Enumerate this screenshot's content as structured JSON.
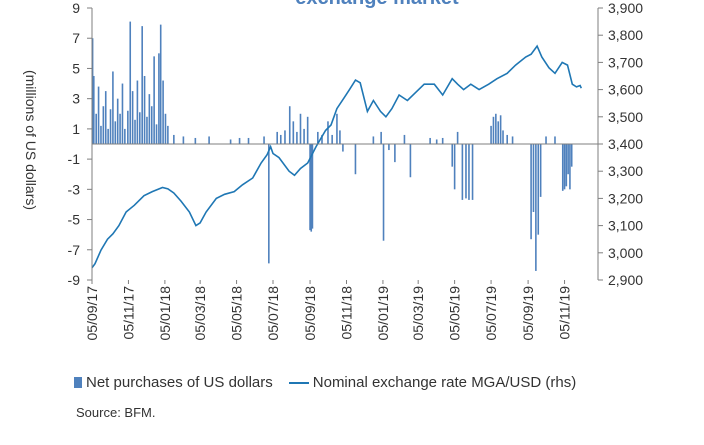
{
  "chart_data": {
    "type": "bar+line",
    "title": "exchange market",
    "ylabel_left": "(millions of US dollars)",
    "y_left_range": [
      -9,
      9
    ],
    "y_left_ticks": [
      "9",
      "7",
      "5",
      "3",
      "1",
      "-1",
      "-3",
      "-5",
      "-7",
      "-9"
    ],
    "y_right_range": [
      2900,
      3900
    ],
    "y_right_ticks": [
      "3,900",
      "3,800",
      "3,700",
      "3,600",
      "3,500",
      "3,400",
      "3,300",
      "3,200",
      "3,100",
      "3,000",
      "2,900"
    ],
    "x_range": [
      "2017-09-05",
      "2019-12-31"
    ],
    "x_ticks": [
      {
        "date": "2017-09-05",
        "label": "05/09/17"
      },
      {
        "date": "2017-11-05",
        "label": "05/11/17"
      },
      {
        "date": "2018-01-05",
        "label": "05/01/18"
      },
      {
        "date": "2018-03-05",
        "label": "05/03/18"
      },
      {
        "date": "2018-05-05",
        "label": "05/05/18"
      },
      {
        "date": "2018-07-05",
        "label": "05/07/18"
      },
      {
        "date": "2018-09-05",
        "label": "05/09/18"
      },
      {
        "date": "2018-11-05",
        "label": "05/11/18"
      },
      {
        "date": "2019-01-05",
        "label": "05/01/19"
      },
      {
        "date": "2019-03-05",
        "label": "05/03/19"
      },
      {
        "date": "2019-05-05",
        "label": "05/05/19"
      },
      {
        "date": "2019-07-05",
        "label": "05/07/19"
      },
      {
        "date": "2019-09-05",
        "label": "05/09/19"
      },
      {
        "date": "2019-11-05",
        "label": "05/11/19"
      }
    ],
    "series": [
      {
        "name": "Net purchases of US dollars",
        "kind": "bar",
        "axis": "left",
        "color": "#4f81bd",
        "points": [
          {
            "x": "2017-09-06",
            "y": 7.0
          },
          {
            "x": "2017-09-08",
            "y": 4.5
          },
          {
            "x": "2017-09-12",
            "y": 2.0
          },
          {
            "x": "2017-09-16",
            "y": 3.8
          },
          {
            "x": "2017-09-20",
            "y": 1.2
          },
          {
            "x": "2017-09-24",
            "y": 2.5
          },
          {
            "x": "2017-09-28",
            "y": 3.5
          },
          {
            "x": "2017-10-02",
            "y": 1.0
          },
          {
            "x": "2017-10-06",
            "y": 2.3
          },
          {
            "x": "2017-10-10",
            "y": 4.8
          },
          {
            "x": "2017-10-14",
            "y": 1.5
          },
          {
            "x": "2017-10-18",
            "y": 3.0
          },
          {
            "x": "2017-10-22",
            "y": 2.0
          },
          {
            "x": "2017-10-26",
            "y": 4.0
          },
          {
            "x": "2017-10-30",
            "y": 1.0
          },
          {
            "x": "2017-11-04",
            "y": 2.2
          },
          {
            "x": "2017-11-08",
            "y": 8.1
          },
          {
            "x": "2017-11-12",
            "y": 3.5
          },
          {
            "x": "2017-11-16",
            "y": 1.6
          },
          {
            "x": "2017-11-20",
            "y": 4.2
          },
          {
            "x": "2017-11-24",
            "y": 2.1
          },
          {
            "x": "2017-11-28",
            "y": 7.8
          },
          {
            "x": "2017-12-02",
            "y": 4.5
          },
          {
            "x": "2017-12-06",
            "y": 1.8
          },
          {
            "x": "2017-12-10",
            "y": 3.3
          },
          {
            "x": "2017-12-14",
            "y": 2.5
          },
          {
            "x": "2017-12-18",
            "y": 5.8
          },
          {
            "x": "2017-12-22",
            "y": 1.3
          },
          {
            "x": "2017-12-26",
            "y": 6.0
          },
          {
            "x": "2017-12-29",
            "y": 7.9
          },
          {
            "x": "2018-01-02",
            "y": 4.2
          },
          {
            "x": "2018-01-06",
            "y": 2.0
          },
          {
            "x": "2018-01-10",
            "y": 1.2
          },
          {
            "x": "2018-01-20",
            "y": 0.6
          },
          {
            "x": "2018-02-05",
            "y": 0.5
          },
          {
            "x": "2018-02-25",
            "y": 0.4
          },
          {
            "x": "2018-03-20",
            "y": 0.5
          },
          {
            "x": "2018-04-25",
            "y": 0.3
          },
          {
            "x": "2018-05-10",
            "y": 0.4
          },
          {
            "x": "2018-05-25",
            "y": 0.4
          },
          {
            "x": "2018-06-20",
            "y": 0.5
          },
          {
            "x": "2018-06-28",
            "y": -7.9
          },
          {
            "x": "2018-07-12",
            "y": 0.8
          },
          {
            "x": "2018-07-18",
            "y": 0.6
          },
          {
            "x": "2018-07-25",
            "y": 0.9
          },
          {
            "x": "2018-08-02",
            "y": 2.5
          },
          {
            "x": "2018-08-08",
            "y": 1.5
          },
          {
            "x": "2018-08-14",
            "y": 0.8
          },
          {
            "x": "2018-08-20",
            "y": 2.0
          },
          {
            "x": "2018-08-26",
            "y": 1.0
          },
          {
            "x": "2018-09-01",
            "y": 1.8
          },
          {
            "x": "2018-09-05",
            "y": -5.7
          },
          {
            "x": "2018-09-07",
            "y": -5.8
          },
          {
            "x": "2018-09-09",
            "y": -5.6
          },
          {
            "x": "2018-09-18",
            "y": 0.8
          },
          {
            "x": "2018-09-25",
            "y": 0.6
          },
          {
            "x": "2018-10-05",
            "y": 1.5
          },
          {
            "x": "2018-10-12",
            "y": 0.6
          },
          {
            "x": "2018-10-20",
            "y": 2.0
          },
          {
            "x": "2018-10-25",
            "y": 0.9
          },
          {
            "x": "2018-10-30",
            "y": -0.5
          },
          {
            "x": "2018-11-20",
            "y": -2.0
          },
          {
            "x": "2018-12-20",
            "y": 0.5
          },
          {
            "x": "2019-01-02",
            "y": 0.8
          },
          {
            "x": "2019-01-06",
            "y": -6.4
          },
          {
            "x": "2019-01-15",
            "y": -0.4
          },
          {
            "x": "2019-01-25",
            "y": -1.2
          },
          {
            "x": "2019-02-10",
            "y": 0.6
          },
          {
            "x": "2019-02-20",
            "y": -2.2
          },
          {
            "x": "2019-03-25",
            "y": 0.4
          },
          {
            "x": "2019-04-05",
            "y": 0.3
          },
          {
            "x": "2019-04-15",
            "y": 0.4
          },
          {
            "x": "2019-05-01",
            "y": -1.5
          },
          {
            "x": "2019-05-05",
            "y": -3.0
          },
          {
            "x": "2019-05-10",
            "y": 0.8
          },
          {
            "x": "2019-05-18",
            "y": -3.7
          },
          {
            "x": "2019-05-24",
            "y": -3.6
          },
          {
            "x": "2019-05-29",
            "y": -3.7
          },
          {
            "x": "2019-06-04",
            "y": -3.7
          },
          {
            "x": "2019-07-05",
            "y": 1.2
          },
          {
            "x": "2019-07-09",
            "y": 1.8
          },
          {
            "x": "2019-07-13",
            "y": 2.0
          },
          {
            "x": "2019-07-17",
            "y": 1.5
          },
          {
            "x": "2019-07-21",
            "y": 1.9
          },
          {
            "x": "2019-07-25",
            "y": 0.9
          },
          {
            "x": "2019-08-01",
            "y": 0.6
          },
          {
            "x": "2019-08-10",
            "y": 0.5
          },
          {
            "x": "2019-09-10",
            "y": -6.3
          },
          {
            "x": "2019-09-14",
            "y": -4.5
          },
          {
            "x": "2019-09-18",
            "y": -8.4
          },
          {
            "x": "2019-09-22",
            "y": -6.0
          },
          {
            "x": "2019-09-26",
            "y": -3.5
          },
          {
            "x": "2019-10-05",
            "y": 0.5
          },
          {
            "x": "2019-10-20",
            "y": 0.5
          },
          {
            "x": "2019-11-02",
            "y": -3.1
          },
          {
            "x": "2019-11-05",
            "y": -3.0
          },
          {
            "x": "2019-11-08",
            "y": -2.8
          },
          {
            "x": "2019-11-11",
            "y": -2.0
          },
          {
            "x": "2019-11-14",
            "y": -3.0
          },
          {
            "x": "2019-11-17",
            "y": -1.5
          }
        ]
      },
      {
        "name": "Nominal exchange rate MGA/USD (rhs)",
        "kind": "line",
        "axis": "right",
        "color": "#1f77b4",
        "points": [
          {
            "x": "2017-09-05",
            "y": 2945
          },
          {
            "x": "2017-09-10",
            "y": 2960
          },
          {
            "x": "2017-09-20",
            "y": 3010
          },
          {
            "x": "2017-10-01",
            "y": 3050
          },
          {
            "x": "2017-10-10",
            "y": 3070
          },
          {
            "x": "2017-10-20",
            "y": 3100
          },
          {
            "x": "2017-11-01",
            "y": 3150
          },
          {
            "x": "2017-11-15",
            "y": 3175
          },
          {
            "x": "2017-12-01",
            "y": 3210
          },
          {
            "x": "2017-12-15",
            "y": 3225
          },
          {
            "x": "2018-01-01",
            "y": 3240
          },
          {
            "x": "2018-01-10",
            "y": 3235
          },
          {
            "x": "2018-01-20",
            "y": 3220
          },
          {
            "x": "2018-02-01",
            "y": 3190
          },
          {
            "x": "2018-02-15",
            "y": 3150
          },
          {
            "x": "2018-02-26",
            "y": 3100
          },
          {
            "x": "2018-03-05",
            "y": 3110
          },
          {
            "x": "2018-03-15",
            "y": 3150
          },
          {
            "x": "2018-04-01",
            "y": 3200
          },
          {
            "x": "2018-04-15",
            "y": 3215
          },
          {
            "x": "2018-05-01",
            "y": 3225
          },
          {
            "x": "2018-05-15",
            "y": 3250
          },
          {
            "x": "2018-06-01",
            "y": 3275
          },
          {
            "x": "2018-06-15",
            "y": 3330
          },
          {
            "x": "2018-06-25",
            "y": 3360
          },
          {
            "x": "2018-07-01",
            "y": 3390
          },
          {
            "x": "2018-07-05",
            "y": 3365
          },
          {
            "x": "2018-07-15",
            "y": 3350
          },
          {
            "x": "2018-08-01",
            "y": 3300
          },
          {
            "x": "2018-08-10",
            "y": 3285
          },
          {
            "x": "2018-08-20",
            "y": 3310
          },
          {
            "x": "2018-09-01",
            "y": 3330
          },
          {
            "x": "2018-09-15",
            "y": 3390
          },
          {
            "x": "2018-10-01",
            "y": 3450
          },
          {
            "x": "2018-10-10",
            "y": 3470
          },
          {
            "x": "2018-10-20",
            "y": 3530
          },
          {
            "x": "2018-11-01",
            "y": 3570
          },
          {
            "x": "2018-11-10",
            "y": 3600
          },
          {
            "x": "2018-11-20",
            "y": 3635
          },
          {
            "x": "2018-11-28",
            "y": 3625
          },
          {
            "x": "2018-12-10",
            "y": 3520
          },
          {
            "x": "2018-12-20",
            "y": 3560
          },
          {
            "x": "2019-01-01",
            "y": 3520
          },
          {
            "x": "2019-01-10",
            "y": 3500
          },
          {
            "x": "2019-01-20",
            "y": 3530
          },
          {
            "x": "2019-02-01",
            "y": 3580
          },
          {
            "x": "2019-02-15",
            "y": 3560
          },
          {
            "x": "2019-03-01",
            "y": 3590
          },
          {
            "x": "2019-03-15",
            "y": 3620
          },
          {
            "x": "2019-04-01",
            "y": 3620
          },
          {
            "x": "2019-04-15",
            "y": 3580
          },
          {
            "x": "2019-05-01",
            "y": 3640
          },
          {
            "x": "2019-05-10",
            "y": 3620
          },
          {
            "x": "2019-05-20",
            "y": 3600
          },
          {
            "x": "2019-06-01",
            "y": 3620
          },
          {
            "x": "2019-06-15",
            "y": 3600
          },
          {
            "x": "2019-07-01",
            "y": 3620
          },
          {
            "x": "2019-07-15",
            "y": 3640
          },
          {
            "x": "2019-08-01",
            "y": 3660
          },
          {
            "x": "2019-08-15",
            "y": 3690
          },
          {
            "x": "2019-09-01",
            "y": 3720
          },
          {
            "x": "2019-09-10",
            "y": 3730
          },
          {
            "x": "2019-09-20",
            "y": 3760
          },
          {
            "x": "2019-09-28",
            "y": 3720
          },
          {
            "x": "2019-10-10",
            "y": 3680
          },
          {
            "x": "2019-10-20",
            "y": 3660
          },
          {
            "x": "2019-11-01",
            "y": 3700
          },
          {
            "x": "2019-11-10",
            "y": 3690
          },
          {
            "x": "2019-11-18",
            "y": 3620
          },
          {
            "x": "2019-11-25",
            "y": 3610
          },
          {
            "x": "2019-12-01",
            "y": 3615
          },
          {
            "x": "2019-12-03",
            "y": 3605
          }
        ]
      }
    ],
    "grid": false,
    "legend_position": "bottom",
    "source": "Source: BFM."
  },
  "colors": {
    "bars": "#4f81bd",
    "line": "#1f77b4",
    "title": "#4f81bd",
    "axis": "#7f7f7f"
  }
}
